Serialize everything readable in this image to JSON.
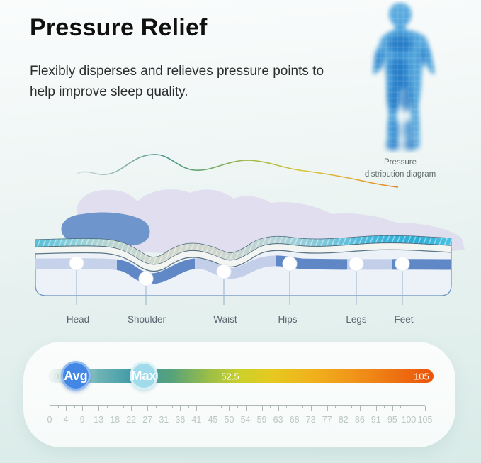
{
  "header": {
    "title": "Pressure Relief",
    "subtitle": "Flexibly disperses and relieves pressure points to help improve sleep quality."
  },
  "figure_caption": {
    "line1": "Pressure",
    "line2": "distribution diagram"
  },
  "diagram": {
    "labels": [
      "Head",
      "Shoulder",
      "Waist",
      "Hips",
      "Legs",
      "Feet"
    ]
  },
  "scale": {
    "avg_label": "Avg",
    "max_label": "Max",
    "bar_min": "0",
    "bar_mid": "52.5",
    "bar_max": "105",
    "ruler_labels": [
      "0",
      "4",
      "9",
      "13",
      "18",
      "22",
      "27",
      "31",
      "36",
      "41",
      "45",
      "50",
      "54",
      "59",
      "63",
      "68",
      "73",
      "77",
      "82",
      "86",
      "91",
      "95",
      "100",
      "105"
    ]
  },
  "colors": {
    "title_text": "#101010",
    "avg_marker": "#4486e4",
    "max_marker": "#9fdbea",
    "bar_start": "#f3f7f5",
    "bar_teal": "#3f9aa6",
    "bar_yellow": "#ccd02b",
    "bar_end": "#ec5309",
    "support_dark": "#6088c6",
    "support_light": "#c6d2e9",
    "pillow": "#6e95cc",
    "body_silhouette": "#dfddee",
    "comfort_texture": "#3db6dc",
    "figure_blue": "#3c98d8"
  }
}
